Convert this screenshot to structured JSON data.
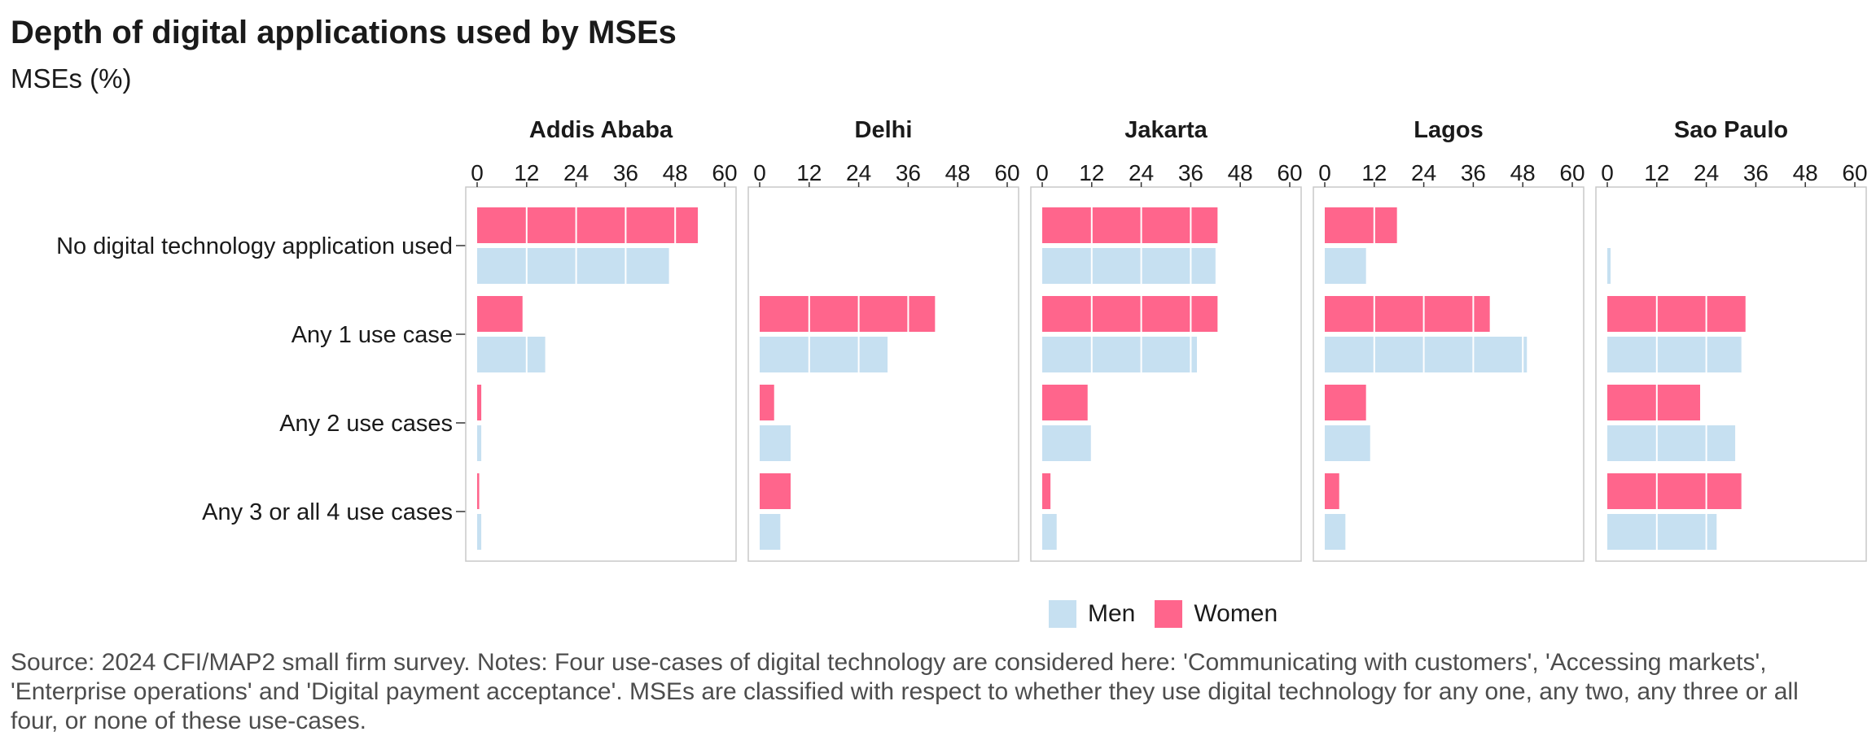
{
  "header": {
    "title": "Depth of digital applications used by MSEs",
    "subtitle": "MSEs (%)"
  },
  "legend": {
    "items": [
      {
        "label": "Men",
        "color": "#c6e0f1"
      },
      {
        "label": "Women",
        "color": "#ff658c"
      }
    ]
  },
  "source": "Source: 2024 CFI/MAP2 small firm survey. Notes: Four use-cases of digital technology are considered here: 'Communicating with customers', 'Accessing markets', 'Enterprise operations' and 'Digital payment acceptance'. MSEs are classified with respect to whether they use digital technology for any one, any two, any three or all four, or none of these use-cases.",
  "chart_data": {
    "type": "bar",
    "orientation": "horizontal",
    "categories": [
      "No digital technology application used",
      "Any 1 use case",
      "Any 2 use cases",
      "Any 3 or all 4 use cases"
    ],
    "xlim": [
      0,
      60
    ],
    "x_ticks": [
      0,
      12,
      24,
      36,
      48,
      60
    ],
    "grid": true,
    "legend_position": "bottom",
    "panels": [
      {
        "name": "Addis Ababa",
        "series": [
          {
            "name": "Women",
            "color": "#ff658c",
            "values": [
              53.5,
              11,
              1,
              0.5
            ]
          },
          {
            "name": "Men",
            "color": "#c6e0f1",
            "values": [
              46.5,
              16.5,
              1,
              1
            ]
          }
        ]
      },
      {
        "name": "Delhi",
        "series": [
          {
            "name": "Women",
            "color": "#ff658c",
            "values": [
              0,
              42.5,
              3.5,
              7.5
            ]
          },
          {
            "name": "Men",
            "color": "#c6e0f1",
            "values": [
              0,
              31,
              7.5,
              5
            ]
          }
        ]
      },
      {
        "name": "Jakarta",
        "series": [
          {
            "name": "Women",
            "color": "#ff658c",
            "values": [
              42.5,
              42.5,
              11,
              2
            ]
          },
          {
            "name": "Men",
            "color": "#c6e0f1",
            "values": [
              42,
              37.5,
              12,
              3.5
            ]
          }
        ]
      },
      {
        "name": "Lagos",
        "series": [
          {
            "name": "Women",
            "color": "#ff658c",
            "values": [
              17.5,
              40,
              10,
              3.5
            ]
          },
          {
            "name": "Men",
            "color": "#c6e0f1",
            "values": [
              10,
              49,
              11,
              5
            ]
          }
        ]
      },
      {
        "name": "Sao Paulo",
        "series": [
          {
            "name": "Women",
            "color": "#ff658c",
            "values": [
              0,
              33.5,
              22.5,
              32.5
            ]
          },
          {
            "name": "Men",
            "color": "#c6e0f1",
            "values": [
              0.8,
              32.5,
              31,
              26.5
            ]
          }
        ]
      }
    ]
  }
}
